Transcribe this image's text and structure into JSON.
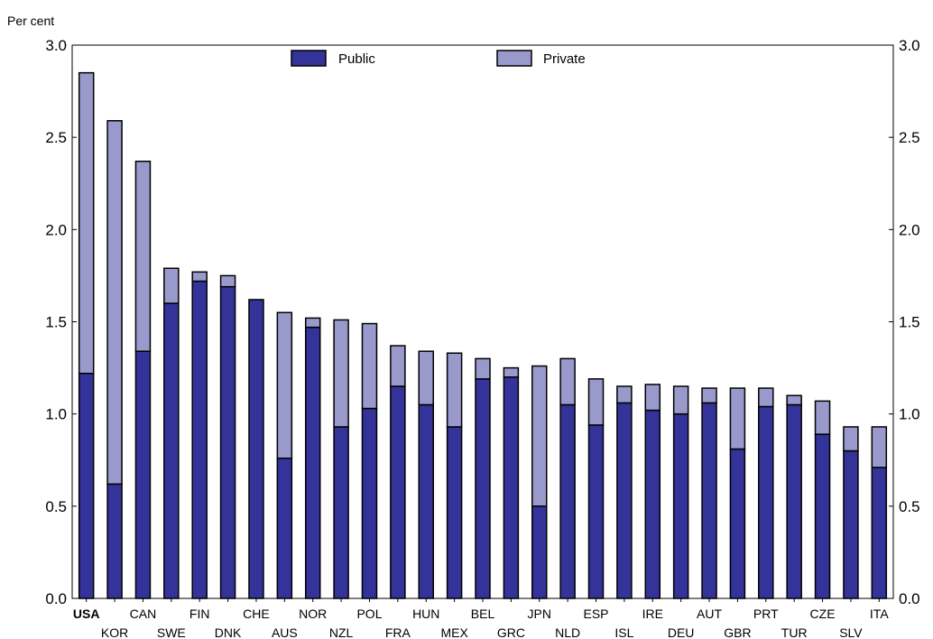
{
  "chart_data": {
    "type": "bar",
    "stacked": true,
    "ylabel": "Per cent",
    "ylim": [
      0,
      3.0
    ],
    "yticks": [
      "0.0",
      "0.5",
      "1.0",
      "1.5",
      "2.0",
      "2.5",
      "3.0"
    ],
    "grid": false,
    "legend_position": "top-center",
    "categories": [
      "USA",
      "KOR",
      "CAN",
      "SWE",
      "FIN",
      "DNK",
      "CHE",
      "AUS",
      "NOR",
      "NZL",
      "POL",
      "FRA",
      "HUN",
      "MEX",
      "BEL",
      "GRC",
      "JPN",
      "NLD",
      "ESP",
      "ISL",
      "IRE",
      "DEU",
      "AUT",
      "GBR",
      "PRT",
      "TUR",
      "CZE",
      "SLV",
      "ITA"
    ],
    "highlighted_category": "USA",
    "series": [
      {
        "name": "Public",
        "color": "#333399",
        "values": [
          1.22,
          0.62,
          1.34,
          1.6,
          1.72,
          1.69,
          1.62,
          0.76,
          1.47,
          0.93,
          1.03,
          1.15,
          1.05,
          0.93,
          1.19,
          1.2,
          0.5,
          1.05,
          0.94,
          1.06,
          1.02,
          1.0,
          1.06,
          0.81,
          1.04,
          1.05,
          0.89,
          0.8,
          0.71
        ]
      },
      {
        "name": "Private",
        "color": "#9999cc",
        "values": [
          1.63,
          1.97,
          1.03,
          0.19,
          0.05,
          0.06,
          0.0,
          0.79,
          0.05,
          0.58,
          0.46,
          0.22,
          0.29,
          0.4,
          0.11,
          0.05,
          0.76,
          0.25,
          0.25,
          0.09,
          0.14,
          0.15,
          0.08,
          0.33,
          0.1,
          0.05,
          0.18,
          0.13,
          0.22
        ]
      }
    ]
  }
}
